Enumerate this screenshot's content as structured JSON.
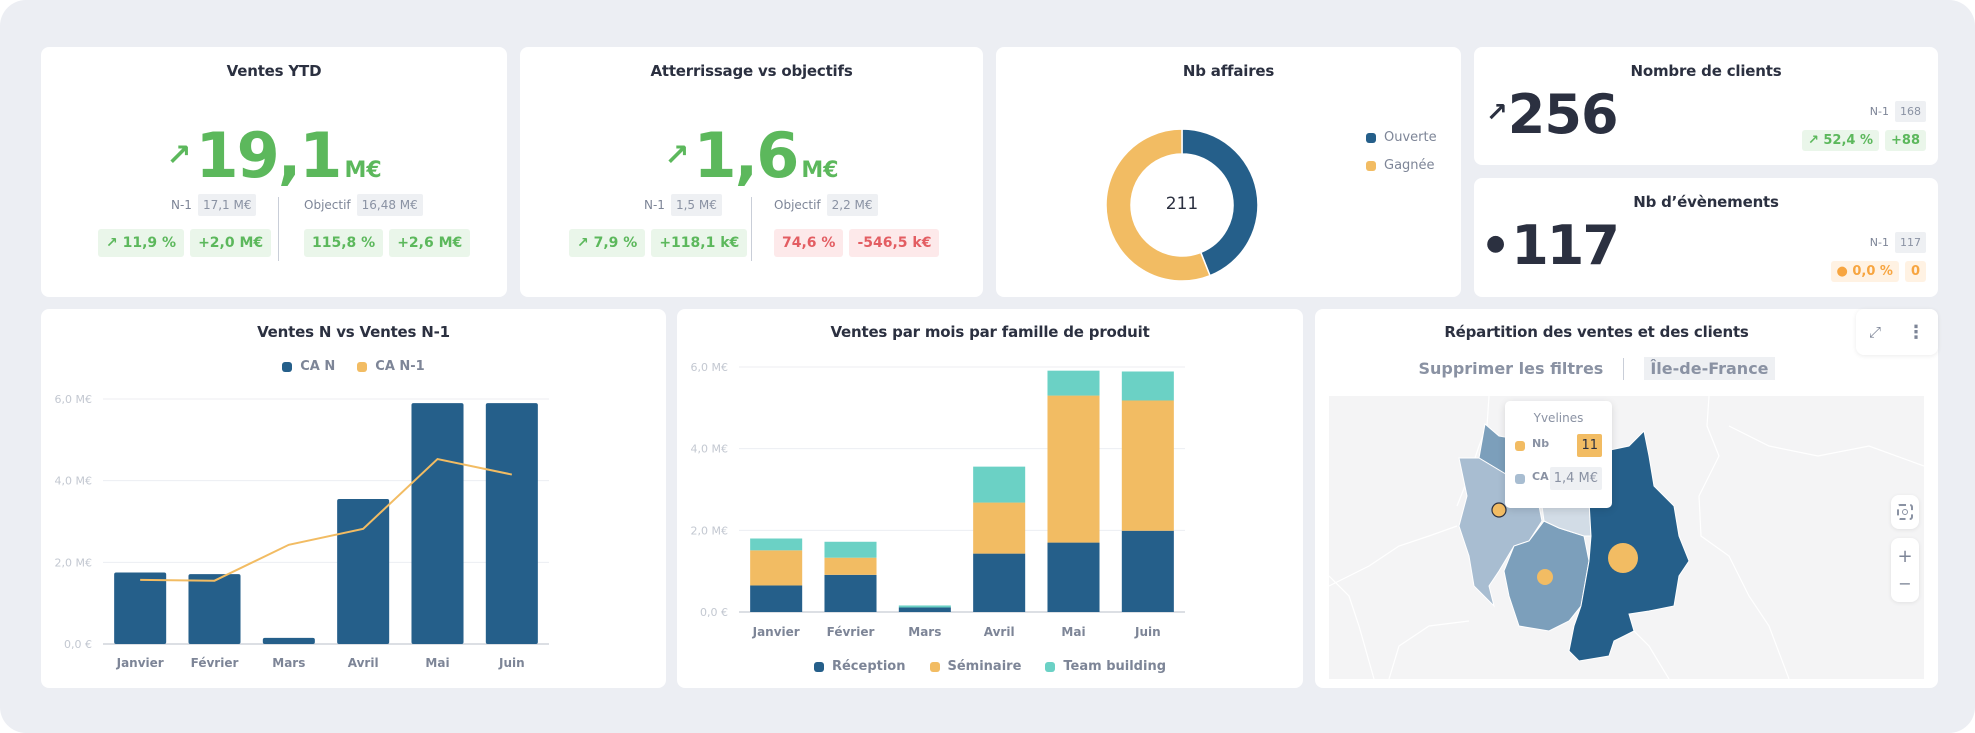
{
  "colors": {
    "background": "#eceef3",
    "card": "#ffffff",
    "positive": "#5cb85c",
    "negative": "#e35d62",
    "neutral_orange": "#f7a540",
    "navy": "#255f8a",
    "yellow": "#f2bc63",
    "teal": "#6bd1c5",
    "map_light": "#a8bdd1",
    "map_mid": "#7c9fbb",
    "map_pale": "#d2dce6"
  },
  "ventes_ytd": {
    "title": "Ventes YTD",
    "trend_icon": "arrow-up-right-icon",
    "value": "19,1",
    "unit": "M€",
    "n1_label": "N-1",
    "n1_value": "17,1 M€",
    "n1_pct": "↗ 11,9 %",
    "n1_delta": "+2,0 M€",
    "objectif_label": "Objectif",
    "objectif_value": "16,48 M€",
    "objectif_pct": "115,8 %",
    "objectif_delta": "+2,6 M€"
  },
  "atterrissage": {
    "title": "Atterrissage vs objectifs",
    "trend_icon": "arrow-up-right-icon",
    "value": "1,6",
    "unit": "M€",
    "n1_label": "N-1",
    "n1_value": "1,5 M€",
    "n1_pct": "↗ 7,9 %",
    "n1_delta": "+118,1 k€",
    "objectif_label": "Objectif",
    "objectif_value": "2,2 M€",
    "objectif_pct": "74,6 %",
    "objectif_delta": "-546,5 k€"
  },
  "nb_affaires": {
    "title": "Nb affaires",
    "total": "211",
    "legend": [
      {
        "label": "Ouverte",
        "color": "#255f8a"
      },
      {
        "label": "Gagnée",
        "color": "#f2bc63"
      }
    ]
  },
  "nombre_clients": {
    "title": "Nombre de clients",
    "trend_icon": "arrow-up-right-icon",
    "value": "256",
    "n1_label": "N-1",
    "n1_value": "168",
    "pct": "↗ 52,4 %",
    "delta": "+88"
  },
  "nb_evenements": {
    "title": "Nb d’évènements",
    "trend_icon": "dot-neutral-icon",
    "value": "117",
    "n1_label": "N-1",
    "n1_value": "117",
    "pct": "● 0,0 %",
    "delta": "0"
  },
  "map": {
    "title": "Répartition des ventes et des clients",
    "clear_filters": "Supprimer les filtres",
    "active_filter": "Île-de-France",
    "tooltip": {
      "region": "Yvelines",
      "nb_label": "Nb",
      "nb_value": "11",
      "ca_label": "CA",
      "ca_value": "1,4 M€"
    },
    "zoom_in": "+",
    "zoom_out": "−"
  },
  "chart_data": [
    {
      "type": "bar",
      "title": "Ventes N vs Ventes N-1",
      "categories": [
        "Janvier",
        "Février",
        "Mars",
        "Avril",
        "Mai",
        "Juin"
      ],
      "series": [
        {
          "name": "CA N",
          "kind": "bar",
          "color": "#255f8a",
          "values": [
            1.75,
            1.71,
            0.15,
            3.55,
            5.9,
            5.9
          ]
        },
        {
          "name": "CA N-1",
          "kind": "line",
          "color": "#f2bc63",
          "values": [
            1.57,
            1.55,
            2.43,
            2.82,
            4.53,
            4.15
          ]
        }
      ],
      "yticks": [
        0,
        2,
        4,
        6
      ],
      "ytick_labels": [
        "0,0 €",
        "2,0 M€",
        "4,0 M€",
        "6,0 M€"
      ],
      "ylim": [
        0,
        6
      ],
      "xlabel": "",
      "ylabel": "",
      "unit": "M€",
      "legend_position": "top-center",
      "grid": true
    },
    {
      "type": "bar",
      "stacked": true,
      "title": "Ventes par mois par famille de produit",
      "categories": [
        "Janvier",
        "Février",
        "Mars",
        "Avril",
        "Mai",
        "Juin"
      ],
      "series": [
        {
          "name": "Réception",
          "color": "#255f8a",
          "values": [
            0.65,
            0.91,
            0.11,
            1.43,
            1.7,
            1.99
          ]
        },
        {
          "name": "Séminaire",
          "color": "#f2bc63",
          "values": [
            0.86,
            0.42,
            0.0,
            1.25,
            3.6,
            3.19
          ]
        },
        {
          "name": "Team building",
          "color": "#6bd1c5",
          "values": [
            0.29,
            0.39,
            0.05,
            0.88,
            0.61,
            0.71
          ]
        }
      ],
      "yticks": [
        0,
        2,
        4,
        6
      ],
      "ytick_labels": [
        "0,0 €",
        "2,0 M€",
        "4,0 M€",
        "6,0 M€"
      ],
      "ylim": [
        0,
        6
      ],
      "xlabel": "",
      "ylabel": "",
      "unit": "M€",
      "legend_position": "bottom-center",
      "grid": true
    },
    {
      "type": "pie",
      "title": "Nb affaires",
      "donut": true,
      "center_label": "211",
      "categories": [
        "Ouverte",
        "Gagnée"
      ],
      "values": [
        44,
        56
      ],
      "colors": [
        "#255f8a",
        "#f2bc63"
      ],
      "unit": "%"
    }
  ]
}
